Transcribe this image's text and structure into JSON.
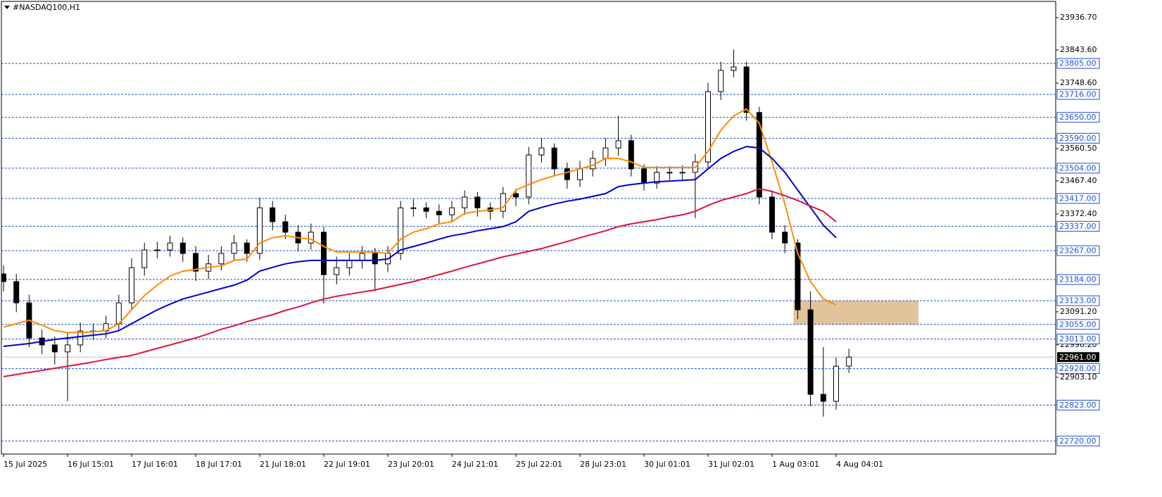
{
  "chart_data": {
    "type": "candlestick",
    "title": "#NASDAQ100,H1",
    "categories": [
      "15 Jul 2025",
      null,
      null,
      null,
      null,
      "16 Jul 15:01",
      null,
      null,
      null,
      null,
      "17 Jul 16:01",
      null,
      null,
      null,
      null,
      "18 Jul 17:01",
      null,
      null,
      null,
      null,
      "21 Jul 18:01",
      null,
      null,
      null,
      null,
      "22 Jul 19:01",
      null,
      null,
      null,
      null,
      "23 Jul 20:01",
      null,
      null,
      null,
      null,
      "24 Jul 21:01",
      null,
      null,
      null,
      null,
      "25 Jul 22:01",
      null,
      null,
      null,
      null,
      "28 Jul 23:01",
      null,
      null,
      null,
      null,
      "30 Jul 01:01",
      null,
      null,
      null,
      null,
      "31 Jul 02:01",
      null,
      null,
      null,
      null,
      "1 Aug 03:01",
      null,
      null,
      null,
      null,
      "4 Aug 04:01",
      null
    ],
    "open": [
      23200,
      23178,
      23117,
      23016,
      22996,
      22976,
      22996,
      23036,
      23036,
      23057,
      23117,
      23218,
      23269,
      23269,
      23289,
      23259,
      23208,
      23229,
      23259,
      23289,
      23259,
      23390,
      23350,
      23320,
      23289,
      23320,
      23198,
      23218,
      23239,
      23259,
      23229,
      23259,
      23390,
      23390,
      23380,
      23370,
      23390,
      23421,
      23390,
      23380,
      23431,
      23421,
      23542,
      23562,
      23502,
      23471,
      23502,
      23532,
      23562,
      23583,
      23502,
      23461,
      23492,
      23492,
      23492,
      23522,
      23724,
      23785,
      23795,
      23664,
      23421,
      23320,
      23289,
      23097,
      22854,
      22834,
      22935
    ],
    "high": [
      23225,
      23200,
      23140,
      23040,
      23020,
      23030,
      23060,
      23058,
      23080,
      23140,
      23245,
      23290,
      23292,
      23310,
      23305,
      23280,
      23255,
      23280,
      23312,
      23300,
      23420,
      23410,
      23370,
      23340,
      23345,
      23335,
      23250,
      23260,
      23280,
      23275,
      23280,
      23410,
      23415,
      23405,
      23400,
      23410,
      23440,
      23435,
      23405,
      23450,
      23445,
      23565,
      23590,
      23575,
      23520,
      23525,
      23555,
      23590,
      23654,
      23600,
      23515,
      23510,
      23510,
      23512,
      23545,
      23750,
      23810,
      23845,
      23810,
      23680,
      23440,
      23340,
      23300,
      23150,
      22990,
      22960,
      22985
    ],
    "low": [
      23150,
      23090,
      22990,
      22970,
      22940,
      22834,
      22975,
      23010,
      23015,
      23035,
      23095,
      23195,
      23245,
      23250,
      23235,
      23180,
      23185,
      23210,
      23240,
      23235,
      23240,
      23325,
      23300,
      23265,
      23270,
      23115,
      23170,
      23195,
      23215,
      23150,
      23205,
      23240,
      23365,
      23360,
      23345,
      23350,
      23370,
      23365,
      23355,
      23360,
      23395,
      23400,
      23520,
      23480,
      23445,
      23450,
      23480,
      23510,
      23540,
      23480,
      23440,
      23445,
      23470,
      23470,
      23360,
      23500,
      23700,
      23765,
      23640,
      23400,
      23300,
      23260,
      23070,
      22820,
      22790,
      22810,
      22915
    ],
    "close": [
      23178,
      23117,
      23016,
      22996,
      22976,
      22996,
      23036,
      23036,
      23057,
      23117,
      23218,
      23269,
      23269,
      23289,
      23259,
      23208,
      23229,
      23259,
      23289,
      23259,
      23390,
      23350,
      23320,
      23289,
      23320,
      23198,
      23218,
      23239,
      23259,
      23229,
      23259,
      23390,
      23390,
      23380,
      23370,
      23390,
      23421,
      23390,
      23380,
      23431,
      23421,
      23542,
      23562,
      23502,
      23471,
      23502,
      23532,
      23562,
      23583,
      23502,
      23461,
      23492,
      23492,
      23492,
      23522,
      23724,
      23785,
      23795,
      23664,
      23421,
      23320,
      23289,
      23097,
      22854,
      22834,
      22935,
      22961
    ],
    "color": "#000000",
    "lines": [
      {
        "color": "#ff8c00",
        "values": [
          23047,
          23057,
          23067,
          23053,
          23037,
          23032,
          23032,
          23034,
          23037,
          23057,
          23097,
          23138,
          23168,
          23194,
          23208,
          23213,
          23219,
          23223,
          23239,
          23243,
          23289,
          23304,
          23310,
          23304,
          23300,
          23279,
          23263,
          23263,
          23263,
          23263,
          23259,
          23300,
          23320,
          23330,
          23344,
          23350,
          23374,
          23380,
          23384,
          23391,
          23441,
          23457,
          23471,
          23482,
          23492,
          23502,
          23512,
          23532,
          23532,
          23522,
          23506,
          23506,
          23506,
          23506,
          23506,
          23552,
          23613,
          23654,
          23674,
          23633,
          23522,
          23401,
          23259,
          23178,
          23128,
          23111,
          null
        ]
      },
      {
        "color": "#0000cd",
        "values": [
          22992,
          22996,
          23000,
          23006,
          23012,
          23016,
          23020,
          23024,
          23028,
          23037,
          23057,
          23077,
          23097,
          23113,
          23128,
          23138,
          23148,
          23158,
          23168,
          23182,
          23208,
          23219,
          23229,
          23235,
          23239,
          23239,
          23239,
          23239,
          23239,
          23239,
          23243,
          23269,
          23279,
          23289,
          23300,
          23310,
          23316,
          23324,
          23330,
          23336,
          23350,
          23380,
          23391,
          23401,
          23409,
          23415,
          23423,
          23431,
          23451,
          23457,
          23461,
          23465,
          23467,
          23469,
          23471,
          23502,
          23532,
          23552,
          23566,
          23562,
          23532,
          23492,
          23441,
          23391,
          23340,
          23304,
          null
        ]
      },
      {
        "color": "#dc143c",
        "values": [
          22905,
          22911,
          22917,
          22923,
          22929,
          22935,
          22941,
          22947,
          22954,
          22960,
          22966,
          22976,
          22986,
          22996,
          23006,
          23016,
          23028,
          23041,
          23051,
          23063,
          23073,
          23083,
          23095,
          23105,
          23117,
          23128,
          23136,
          23142,
          23148,
          23154,
          23162,
          23170,
          23178,
          23188,
          23198,
          23208,
          23219,
          23229,
          23239,
          23249,
          23257,
          23265,
          23273,
          23283,
          23293,
          23304,
          23314,
          23324,
          23336,
          23344,
          23350,
          23356,
          23364,
          23370,
          23380,
          23397,
          23411,
          23421,
          23431,
          23445,
          23437,
          23425,
          23411,
          23395,
          23380,
          23350,
          null
        ]
      }
    ],
    "ylim": [
      22682.4,
      23983.2
    ],
    "yticks": [
      {
        "value": 23936.7,
        "label": "23936.70"
      },
      {
        "value": 23843.6,
        "label": "23843.60"
      },
      {
        "value": 23748.6,
        "label": "23748.60"
      },
      {
        "value": 23560.5,
        "label": "23560.50"
      },
      {
        "value": 23467.4,
        "label": "23467.40"
      },
      {
        "value": 23372.4,
        "label": "23372.40"
      },
      {
        "value": 23091.2,
        "label": "23091.20"
      },
      {
        "value": 22996.2,
        "label": "22996.20"
      },
      {
        "value": 22903.1,
        "label": "22903.10"
      }
    ],
    "levels": [
      {
        "value": 23805,
        "label": "23805.00"
      },
      {
        "value": 23716,
        "label": "23716.00"
      },
      {
        "value": 23650,
        "label": "23650.00"
      },
      {
        "value": 23590,
        "label": "23590.00"
      },
      {
        "value": 23504,
        "label": "23504.00"
      },
      {
        "value": 23417,
        "label": "23417.00"
      },
      {
        "value": 23337,
        "label": "23337.00"
      },
      {
        "value": 23267,
        "label": "23267.00"
      },
      {
        "value": 23184,
        "label": "23184.00"
      },
      {
        "value": 23123,
        "label": "23123.00"
      },
      {
        "value": 23055,
        "label": "23055.00"
      },
      {
        "value": 23013,
        "label": "23013.00"
      },
      {
        "value": 22928,
        "label": "22928.00"
      },
      {
        "value": 22823,
        "label": "22823.00"
      },
      {
        "value": 22720,
        "label": "22720.00"
      }
    ],
    "level_color": "#1e50d2",
    "current_price": {
      "value": 22961,
      "label": "22961.00"
    },
    "zone": {
      "from": 23055,
      "to": 23123,
      "color": "#deb887"
    }
  }
}
